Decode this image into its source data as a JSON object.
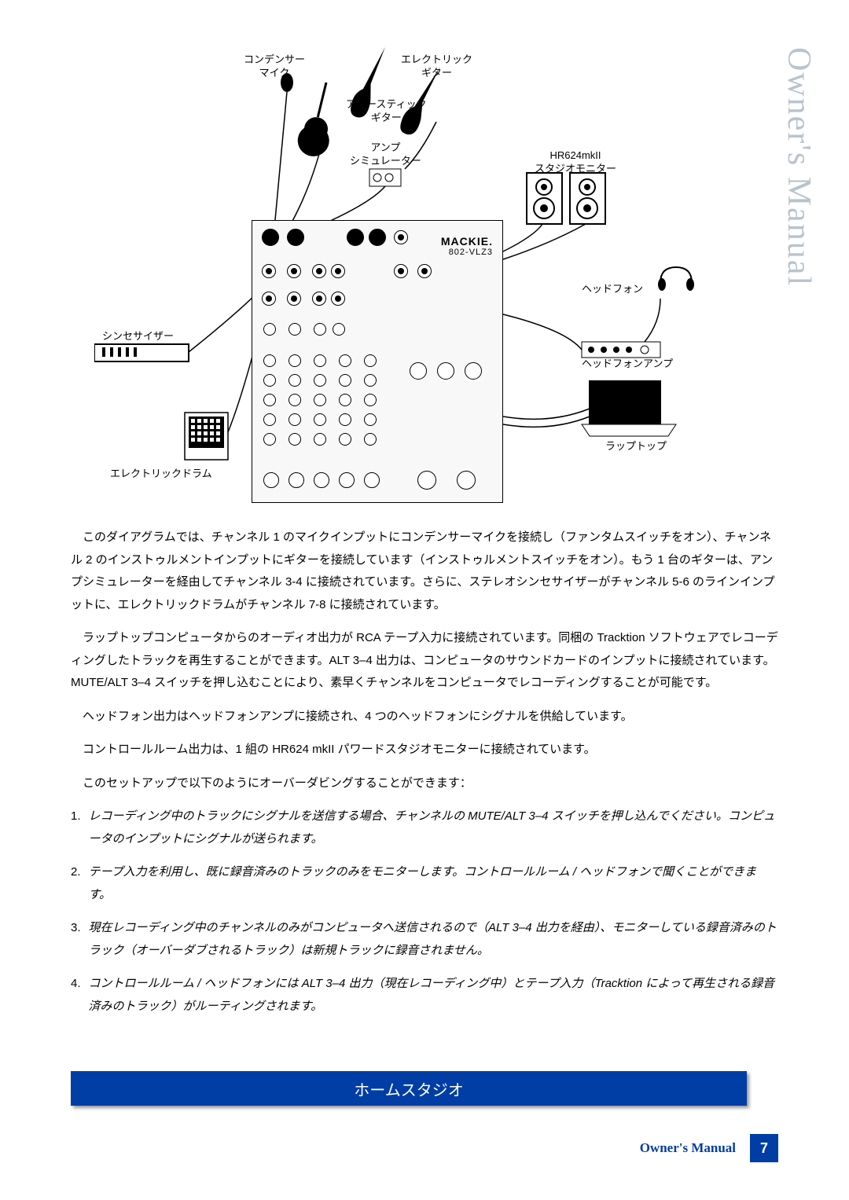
{
  "vertical_title": "Owner's Manual",
  "vertical_title_color": "#b8c4cc",
  "diagram": {
    "mixer_brand": "MACKIE.",
    "mixer_model": "802-VLZ3",
    "labels": {
      "condenser_mic": "コンデンサー\nマイク",
      "electric_guitar": "エレクトリック\nギター",
      "acoustic_guitar": "アコースティック\nギター",
      "amp_sim": "アンプ\nシミュレーター",
      "monitor": "HR624mkII\nスタジオモニター",
      "headphones": "ヘッドフォン",
      "hp_amp": "ヘッドフォンアンプ",
      "synth": "シンセサイザー",
      "edrum": "エレクトリックドラム",
      "laptop": "ラップトップ"
    }
  },
  "paragraphs": [
    "このダイアグラムでは、チャンネル 1 のマイクインプットにコンデンサーマイクを接続し（ファンタムスイッチをオン）、チャンネル 2 のインストゥルメントインプットにギターを接続しています（インストゥルメントスイッチをオン）。もう 1 台のギターは、アンプシミュレーターを経由してチャンネル 3-4 に接続されています。さらに、ステレオシンセサイザーがチャンネル 5-6 のラインインプットに、エレクトリックドラムがチャンネル 7-8 に接続されています。",
    "ラップトップコンピュータからのオーディオ出力が RCA テープ入力に接続されています。同梱の Tracktion ソフトウェアでレコーディングしたトラックを再生することができます。ALT 3–4 出力は、コンピュータのサウンドカードのインプットに接続されています。MUTE/ALT 3–4 スイッチを押し込むことにより、素早くチャンネルをコンピュータでレコーディングすることが可能です。",
    "ヘッドフォン出力はヘッドフォンアンプに接続され、4 つのヘッドフォンにシグナルを供給しています。",
    "コントロールルーム出力は、1 組の HR624 mkII パワードスタジオモニターに接続されています。",
    "このセットアップで以下のようにオーバーダビングすることができます："
  ],
  "steps": [
    "レコーディング中のトラックにシグナルを送信する場合、チャンネルの MUTE/ALT 3–4 スイッチを押し込んでください。コンピュータのインプットにシグナルが送られます。",
    "テープ入力を利用し、既に録音済みのトラックのみをモニターします。コントロールルーム / ヘッドフォンで聞くことができます。",
    "現在レコーディング中のチャンネルのみがコンピュータへ送信されるので（ALT 3–4 出力を経由）、モニターしている録音済みのトラック（オーバーダブされるトラック）は新規トラックに録音されません。",
    "コントロールルーム / ヘッドフォンには ALT 3–4 出力（現在レコーディング中）とテープ入力（Tracktion によって再生される録音済みのトラック）がルーティングされます。"
  ],
  "section_title": "ホームスタジオ",
  "footer_text": "Owner's Manual",
  "page_number": "7",
  "colors": {
    "accent": "#003da5",
    "vertical_title": "#b8c4cc"
  }
}
